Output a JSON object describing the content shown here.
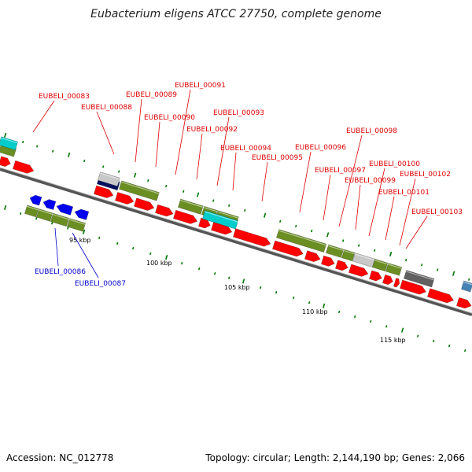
{
  "title": "Eubacterium eligens ATCC 27750, complete genome",
  "footer": {
    "accession": "Accession: NC_012778",
    "topology": "Topology: circular; Length: 2,144,190 bp; Genes: 2,066"
  },
  "colors": {
    "cds": "#ff0000",
    "gene": "#6b8e23",
    "trna": "#00cccc",
    "reverse_cds": "#0000ee",
    "pseudo": "#a0a0a0",
    "misc_dark": "#001060",
    "misc_gray": "#606060",
    "rrna": "#4682b4",
    "forward_label": "#dd0000",
    "reverse_label": "#0000cc",
    "gc_mark": "#007700"
  },
  "ticks": [
    "95 kbp",
    "100 kbp",
    "105 kbp",
    "110 kbp",
    "115 kbp"
  ],
  "forward_labels": [
    "EUBELI_00083",
    "EUBELI_00088",
    "EUBELI_00089",
    "EUBELI_00090",
    "EUBELI_00091",
    "EUBELI_00092",
    "EUBELI_00093",
    "EUBELI_00094",
    "EUBELI_00095",
    "EUBELI_00096",
    "EUBELI_00097",
    "EUBELI_00098",
    "EUBELI_00099",
    "EUBELI_00100",
    "EUBELI_00101",
    "EUBELI_00102",
    "EUBELI_00103"
  ],
  "reverse_labels": [
    "EUBELI_00086",
    "EUBELI_00087"
  ]
}
